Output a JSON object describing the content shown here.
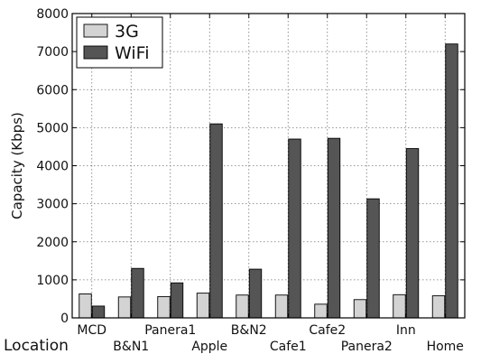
{
  "chart_data": {
    "type": "bar",
    "title": "",
    "xlabel": "Location",
    "ylabel": "Capacity (Kbps)",
    "ylim": [
      0,
      8000
    ],
    "yticks": [
      0,
      1000,
      2000,
      3000,
      4000,
      5000,
      6000,
      7000,
      8000
    ],
    "grid": true,
    "legend_position": "top-left",
    "categories": [
      "MCD",
      "B&N1",
      "Panera1",
      "Apple",
      "B&N2",
      "Cafe1",
      "Cafe2",
      "Panera2",
      "Inn",
      "Home"
    ],
    "series": [
      {
        "name": "3G",
        "color": "#d3d3d3",
        "values": [
          630,
          550,
          560,
          650,
          600,
          600,
          360,
          480,
          610,
          580
        ]
      },
      {
        "name": "WiFi",
        "color": "#555555",
        "values": [
          310,
          1300,
          920,
          5100,
          1280,
          4700,
          4720,
          3130,
          4450,
          7200
        ]
      }
    ]
  }
}
